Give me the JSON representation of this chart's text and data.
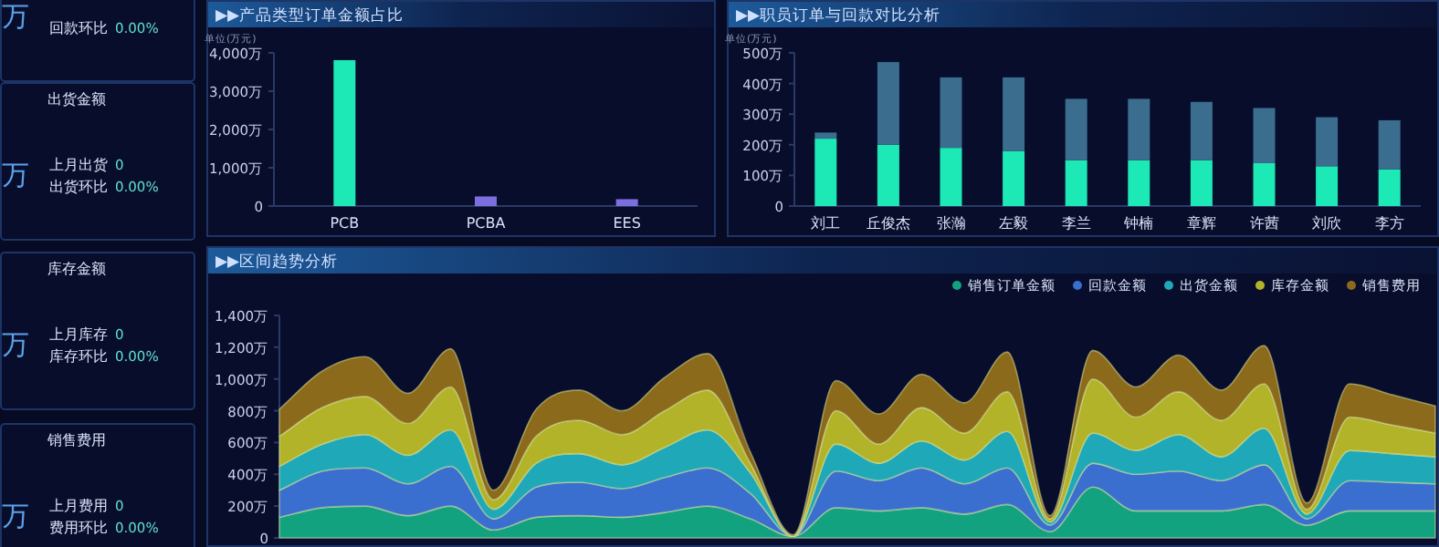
{
  "chart_data": [
    {
      "type": "other",
      "annotations": [
        "万",
        "回款环比",
        "0.00%"
      ]
    },
    {
      "type": "other",
      "title": "出货金额",
      "annotations": [
        "万",
        "上月出货",
        "0",
        "出货环比",
        "0.00%"
      ]
    },
    {
      "type": "other",
      "title": "库存金额",
      "annotations": [
        "万",
        "上月库存",
        "0",
        "库存环比",
        "0.00%"
      ]
    },
    {
      "type": "other",
      "title": "销售费用",
      "annotations": [
        "万",
        "上月费用",
        "0",
        "费用环比",
        "0.00%"
      ]
    },
    {
      "type": "bar",
      "title": "▶▶产品类型订单金额占比",
      "ylabel": "单位(万元)",
      "categories": [
        "PCB",
        "PCBA",
        "EES"
      ],
      "values": [
        3810,
        250,
        180
      ],
      "colors": [
        "#1de9b6",
        "#7b6fe0",
        "#7b6fe0"
      ],
      "ylim": [
        0,
        4000
      ],
      "yticks": [
        {
          "value": 0,
          "label": "0"
        },
        {
          "value": 1000,
          "label": "1,000万"
        },
        {
          "value": 2000,
          "label": "2,000万"
        },
        {
          "value": 3000,
          "label": "3,000万"
        },
        {
          "value": 4000,
          "label": "4,000万"
        }
      ]
    },
    {
      "type": "bar",
      "title": "▶▶职员订单与回款对比分析",
      "ylabel": "单位(万元)",
      "stacked": true,
      "categories": [
        "刘工",
        "丘俊杰",
        "张瀚",
        "左毅",
        "李兰",
        "钟楠",
        "章辉",
        "许茜",
        "刘欣",
        "李方"
      ],
      "ylim": [
        0,
        500
      ],
      "yticks": [
        {
          "value": 0,
          "label": "0"
        },
        {
          "value": 100,
          "label": "100万"
        },
        {
          "value": 200,
          "label": "200万"
        },
        {
          "value": 300,
          "label": "300万"
        },
        {
          "value": 400,
          "label": "400万"
        },
        {
          "value": 500,
          "label": "500万"
        }
      ],
      "series": [
        {
          "color": "#1de9b6",
          "values": [
            220,
            200,
            190,
            180,
            150,
            150,
            150,
            140,
            130,
            120
          ]
        },
        {
          "color": "#3b6d8e",
          "values": [
            20,
            270,
            230,
            240,
            200,
            200,
            190,
            180,
            160,
            160
          ]
        }
      ]
    },
    {
      "type": "area",
      "title": "▶▶区间趋势分析",
      "stacked": true,
      "legend": "top right",
      "categories": [
        null,
        null,
        null,
        null,
        null,
        null,
        null,
        null,
        null,
        null,
        null,
        null,
        null,
        null,
        null,
        null,
        null,
        null,
        null,
        null,
        null,
        null,
        null,
        null,
        null,
        null,
        null,
        null
      ],
      "ylim": [
        0,
        1400
      ],
      "yticks": [
        {
          "value": 0,
          "label": "0"
        },
        {
          "value": 200,
          "label": "200万"
        },
        {
          "value": 400,
          "label": "400万"
        },
        {
          "value": 600,
          "label": "600万"
        },
        {
          "value": 800,
          "label": "800万"
        },
        {
          "value": 1000,
          "label": "1,000万"
        },
        {
          "value": 1200,
          "label": "1,200万"
        },
        {
          "value": 1400,
          "label": "1,400万"
        }
      ],
      "series": [
        {
          "name": "销售订单金额",
          "color": "#13a27f",
          "values": [
            130,
            190,
            200,
            140,
            200,
            50,
            130,
            140,
            130,
            160,
            200,
            120,
            10,
            190,
            170,
            190,
            150,
            210,
            40,
            320,
            170,
            170,
            170,
            210,
            80,
            170,
            170,
            170
          ]
        },
        {
          "name": "回款金额",
          "color": "#3a6fd0",
          "values": [
            170,
            230,
            240,
            200,
            250,
            70,
            190,
            210,
            180,
            220,
            240,
            160,
            0,
            230,
            190,
            250,
            190,
            230,
            40,
            150,
            230,
            250,
            190,
            250,
            40,
            190,
            180,
            170
          ]
        },
        {
          "name": "出货金额",
          "color": "#1fa8b8",
          "values": [
            150,
            170,
            210,
            180,
            230,
            60,
            150,
            180,
            150,
            190,
            240,
            130,
            0,
            170,
            110,
            170,
            150,
            230,
            20,
            190,
            150,
            230,
            150,
            230,
            30,
            190,
            180,
            170
          ]
        },
        {
          "name": "库存金额",
          "color": "#b3b32a",
          "values": [
            190,
            230,
            240,
            200,
            270,
            60,
            170,
            210,
            190,
            230,
            250,
            60,
            0,
            210,
            120,
            210,
            170,
            250,
            20,
            340,
            210,
            270,
            230,
            280,
            30,
            210,
            180,
            150
          ]
        },
        {
          "name": "销售费用",
          "color": "#8c6a1c",
          "values": [
            170,
            230,
            250,
            190,
            240,
            60,
            170,
            190,
            150,
            210,
            230,
            70,
            10,
            190,
            190,
            210,
            190,
            250,
            20,
            180,
            190,
            230,
            190,
            240,
            40,
            210,
            190,
            170
          ]
        }
      ]
    }
  ]
}
